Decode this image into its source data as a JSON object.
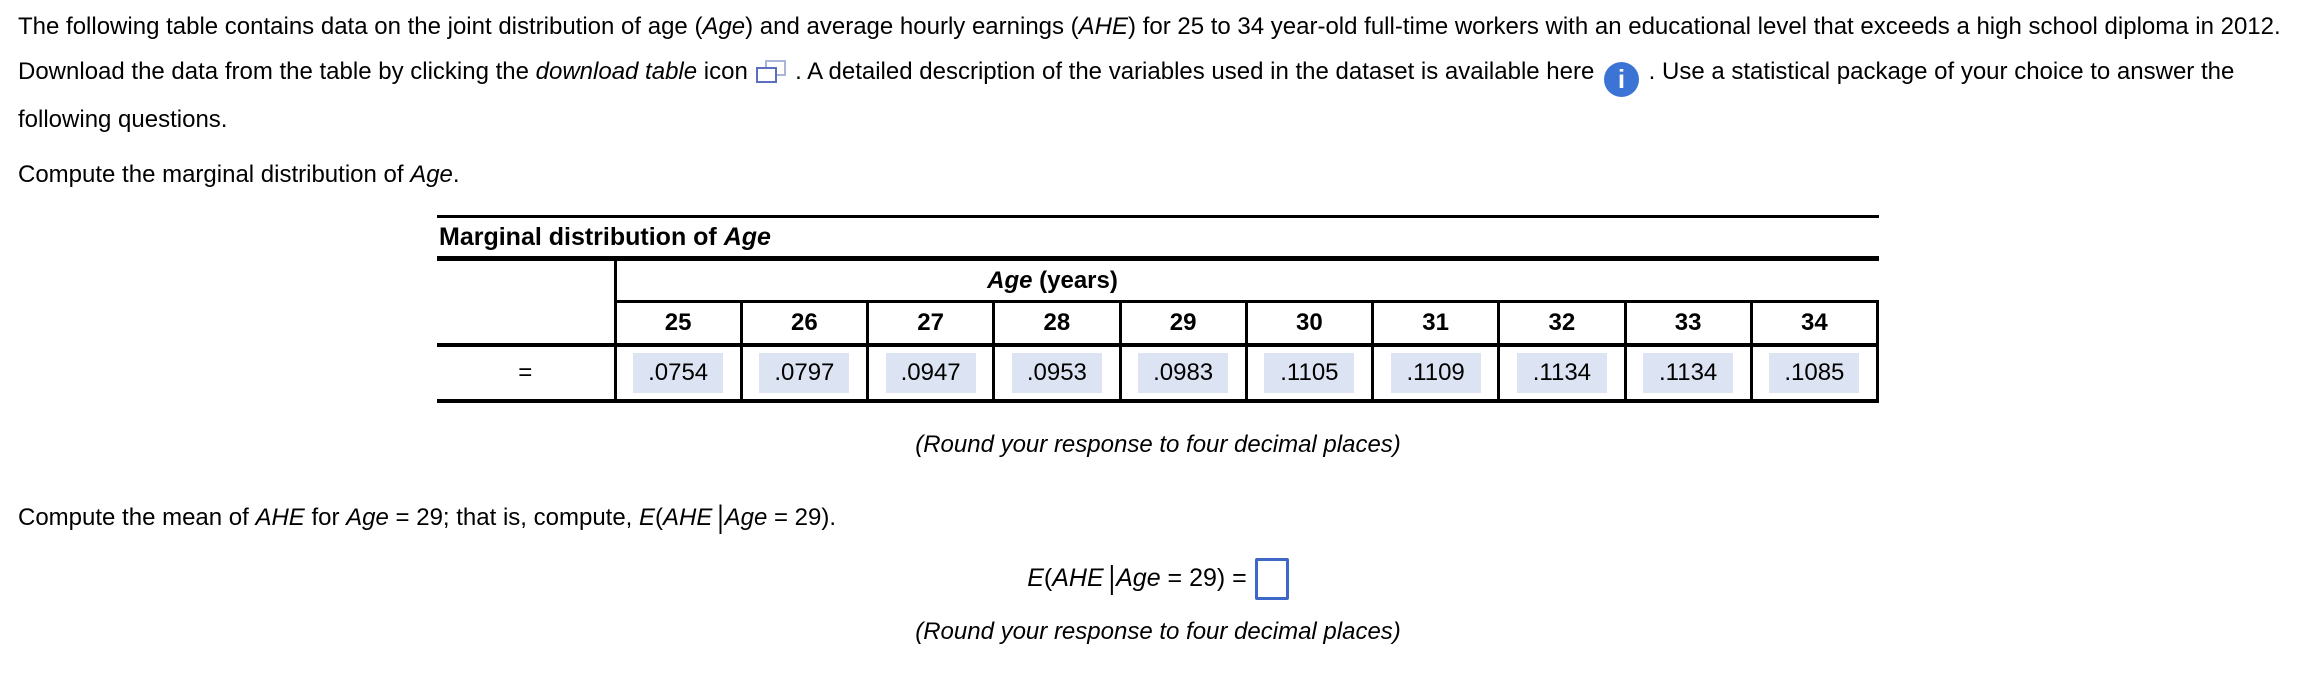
{
  "page": {
    "background": "#ffffff",
    "text_color": "#000000",
    "input_border_blue": "#3e68c8",
    "info_icon_blue": "#3b74d4",
    "download_icon_blue": "#5a6fc2",
    "download_icon_light": "#a9b6da",
    "answer_highlight": "#dce3f2",
    "table_border": "#000000"
  },
  "icons": {
    "download_table": "download-table-icon",
    "info": "info-circle-icon"
  },
  "intro": {
    "part1": [
      {
        "t": "The following table contains data on the joint distribution of age ("
      },
      {
        "t": "Age",
        "i": true
      },
      {
        "t": ") and average hourly earnings ("
      },
      {
        "t": "AHE",
        "i": true
      },
      {
        "t": ") for 25 to 34 year-old full-time workers with an educational level that exceeds a high school diploma in 2012. Download the data from the table by clicking the "
      },
      {
        "t": "download table",
        "i": true
      },
      {
        "t": " icon "
      }
    ],
    "part2": [
      {
        "t": " . A detailed description of the variables used in the dataset is available here "
      }
    ],
    "part3": [
      {
        "t": " . Use a statistical package of your choice to answer the following questions."
      }
    ]
  },
  "question1": [
    {
      "t": "Compute the marginal distribution of "
    },
    {
      "t": "Age",
      "i": true
    },
    {
      "t": "."
    }
  ],
  "table": {
    "title": [
      {
        "t": "Marginal distribution of "
      },
      {
        "t": "Age",
        "i": true
      }
    ],
    "span_header": [
      {
        "t": "Age",
        "i": true
      },
      {
        "t": " (years)"
      }
    ],
    "columns": [
      "25",
      "26",
      "27",
      "28",
      "29",
      "30",
      "31",
      "32",
      "33",
      "34"
    ],
    "row_label": "=",
    "values": [
      ".0754",
      ".0797",
      ".0947",
      ".0953",
      ".0983",
      ".1105",
      ".1109",
      ".1134",
      ".1134",
      ".1085"
    ]
  },
  "round_note": "(Round your response to four decimal places)",
  "question2": [
    {
      "t": "Compute the mean of "
    },
    {
      "t": "AHE",
      "i": true
    },
    {
      "t": " for "
    },
    {
      "t": "Age",
      "i": true
    },
    {
      "t": " = 29; that is, compute, "
    },
    {
      "t": "E",
      "i": true
    },
    {
      "t": "("
    },
    {
      "t": "AHE",
      "i": true
    },
    {
      "t": "|",
      "v": true
    },
    {
      "t": "Age",
      "i": true
    },
    {
      "t": " = 29)."
    }
  ],
  "answer": {
    "equation": [
      {
        "t": "E",
        "i": true
      },
      {
        "t": "("
      },
      {
        "t": "AHE",
        "i": true
      },
      {
        "t": "|",
        "v": true
      },
      {
        "t": "Age",
        "i": true
      },
      {
        "t": " = 29) ="
      }
    ],
    "value": ""
  }
}
